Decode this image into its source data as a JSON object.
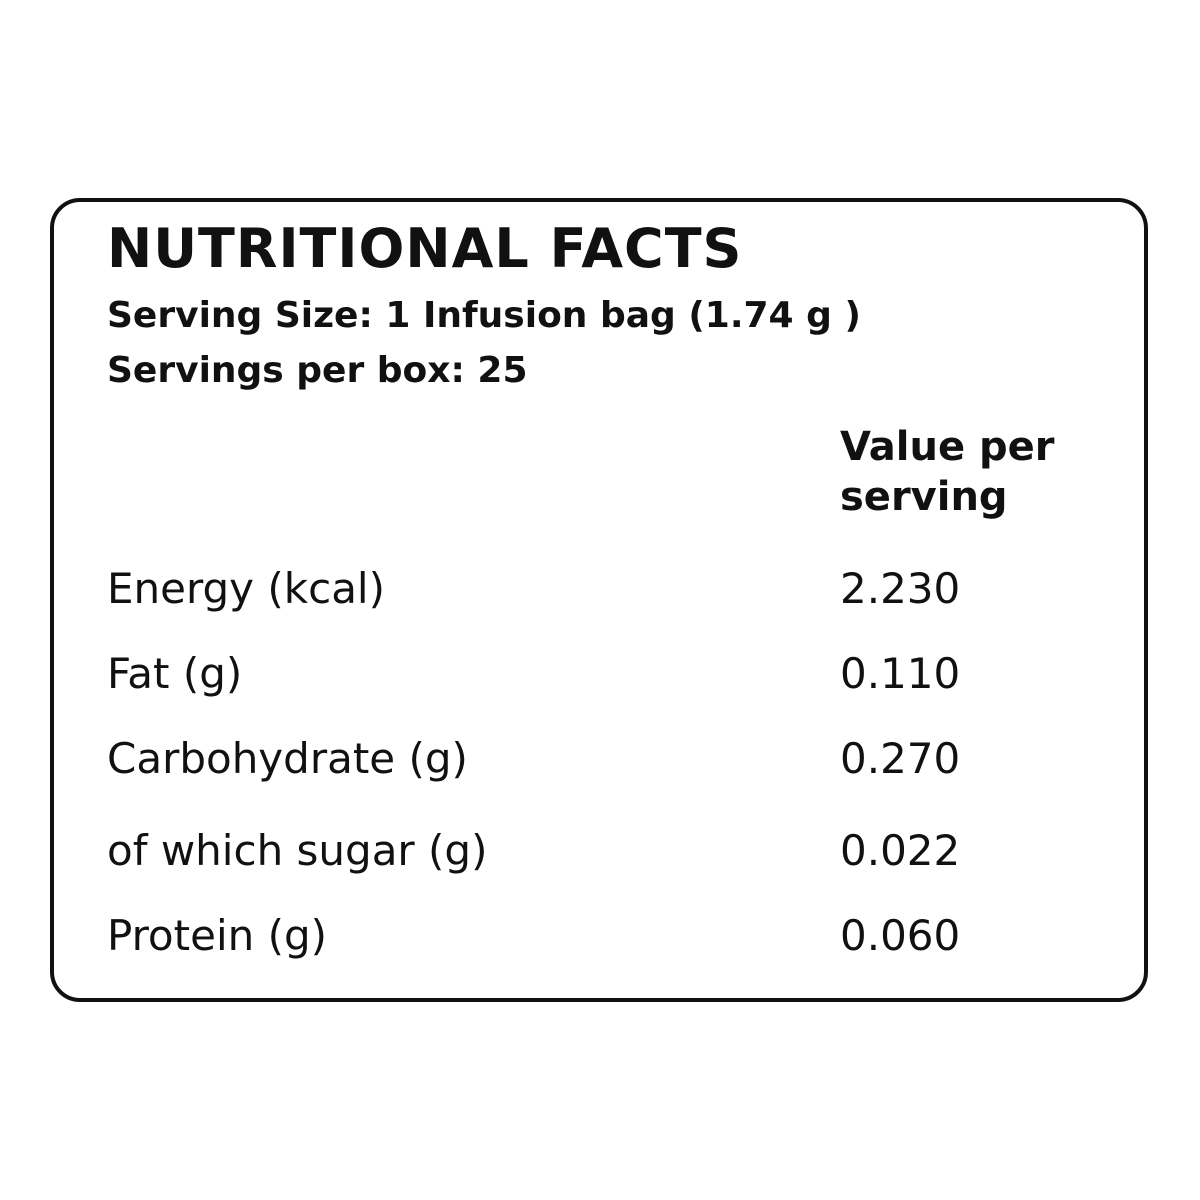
{
  "header": {
    "title": "NUTRITIONAL FACTS",
    "serving_size": "Serving Size: 1 Infusion bag (1.74 g )",
    "servings_per_box": "Servings per box: 25"
  },
  "table": {
    "column_header": "Value per serving",
    "rows": [
      [
        "Energy (kcal)",
        "2.230"
      ],
      [
        "Fat (g)",
        "0.110"
      ],
      [
        "Carbohydrate (g)",
        "0.270"
      ],
      [
        "of which sugar (g)",
        "0.022"
      ],
      [
        "Protein (g)",
        "0.060"
      ]
    ]
  }
}
